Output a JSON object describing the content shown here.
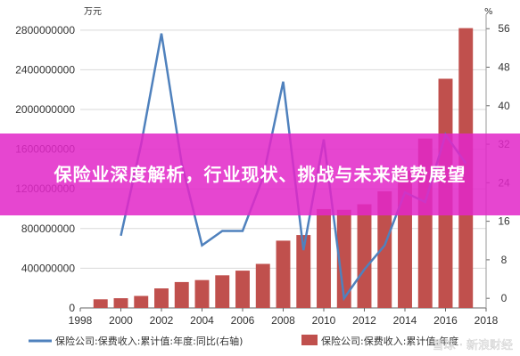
{
  "banner": {
    "title": "保险业深度解析，行业现状、挑战与未来趋势展望"
  },
  "watermark": "雪球 · 新浪财经",
  "chart_data": {
    "type": "bar+line",
    "left_axis_unit": "万元",
    "right_axis_unit": "%",
    "x_ticks": [
      1998,
      2000,
      2002,
      2004,
      2006,
      2008,
      2010,
      2012,
      2014,
      2016,
      2018
    ],
    "y_left_ticks": [
      "0",
      "400000000",
      "800000000",
      "1200000000",
      "1600000000",
      "2000000000",
      "2400000000",
      "2800000000"
    ],
    "y_right_ticks": [
      "0",
      "8",
      "16",
      "24",
      "32",
      "40",
      "48",
      "56"
    ],
    "ylim_left": [
      0,
      2960000000
    ],
    "ylim_right": [
      -2,
      59
    ],
    "xlim": [
      1998,
      2018
    ],
    "colors": {
      "bar": "#c0504d",
      "line": "#4f81bd",
      "grid": "#d9d9d9"
    },
    "bar_series": {
      "name": "保险公司:保费收入:累计值:年度",
      "years": [
        1999,
        2000,
        2001,
        2002,
        2003,
        2004,
        2005,
        2006,
        2007,
        2008,
        2009,
        2010,
        2011,
        2012,
        2013,
        2014,
        2015,
        2016,
        2017
      ],
      "values": [
        87000000,
        98000000,
        121000000,
        197000000,
        261000000,
        281000000,
        329000000,
        376000000,
        444000000,
        678000000,
        735000000,
        996000000,
        989000000,
        1045000000,
        1175000000,
        1384000000,
        1707000000,
        2310000000,
        2820000000
      ]
    },
    "line_series": {
      "name": "保险公司:保费收入:累计值:年度:同比(右轴)",
      "years": [
        2000,
        2001,
        2002,
        2003,
        2004,
        2005,
        2006,
        2007,
        2008,
        2009,
        2010,
        2011,
        2012,
        2013,
        2014,
        2015,
        2016,
        2017
      ],
      "values": [
        13.0,
        32.0,
        55.0,
        28.0,
        11.0,
        14.0,
        14.0,
        25.0,
        45.0,
        10.0,
        33.0,
        0.0,
        6.0,
        11.0,
        22.0,
        20.0,
        34.0,
        28.0
      ]
    }
  }
}
